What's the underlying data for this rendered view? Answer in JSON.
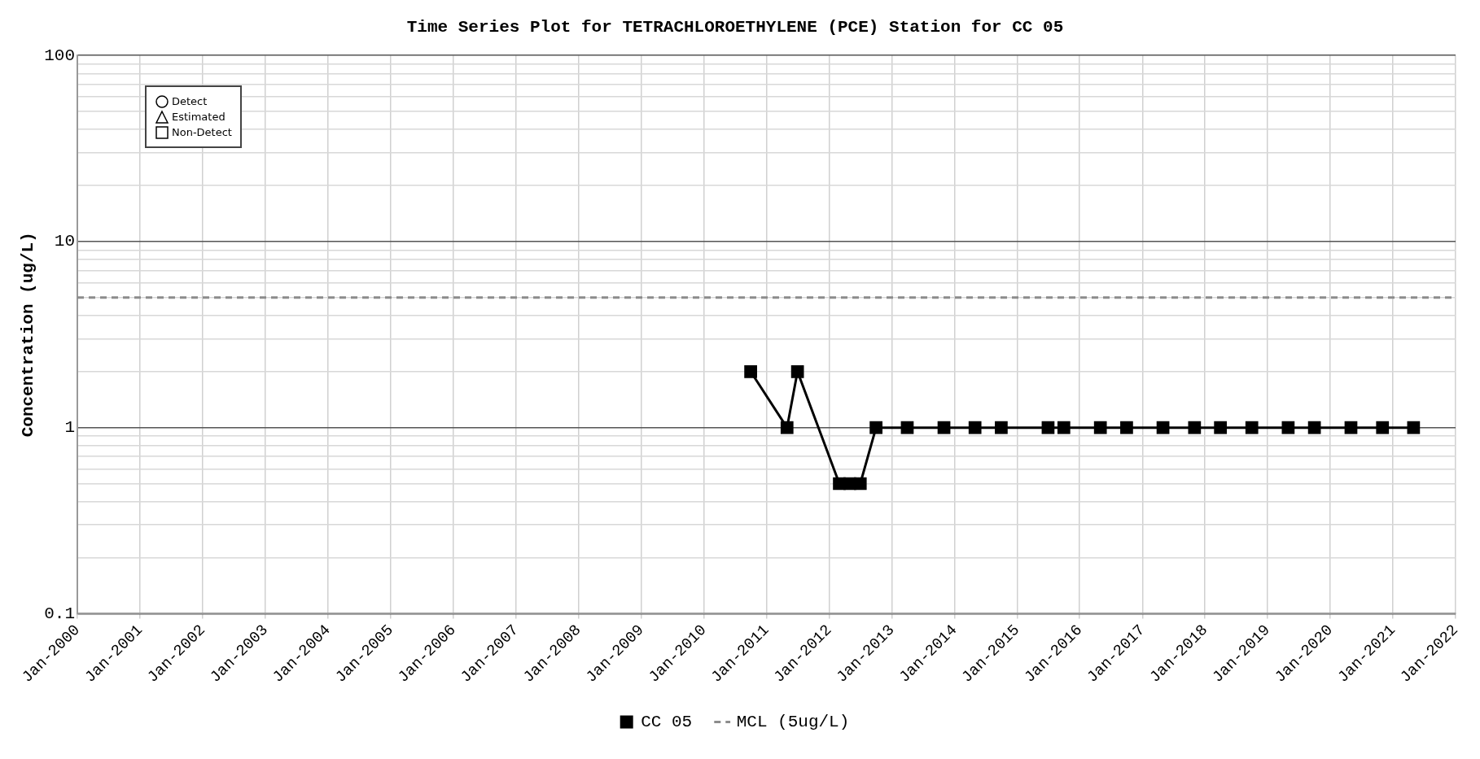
{
  "chart_data": {
    "type": "line",
    "title": "Time Series Plot for TETRACHLOROETHYLENE (PCE) Station for CC 05",
    "ylabel": "Concentration (ug/L)",
    "x": [
      "2010-10",
      "2011-05",
      "2011-07",
      "2012-03",
      "2012-05",
      "2012-07",
      "2012-10",
      "2013-04",
      "2013-11",
      "2014-05",
      "2014-10",
      "2015-07",
      "2015-10",
      "2016-05",
      "2016-10",
      "2017-05",
      "2017-11",
      "2018-04",
      "2018-10",
      "2019-05",
      "2019-10",
      "2020-05",
      "2020-11",
      "2021-05"
    ],
    "series": [
      {
        "name": "CC 05",
        "color": "#000000",
        "marker": "square",
        "values": [
          2,
          1,
          2,
          0.5,
          0.5,
          0.5,
          1,
          1,
          1,
          1,
          1,
          1,
          1,
          1,
          1,
          1,
          1,
          1,
          1,
          1,
          1,
          1,
          1,
          1
        ]
      }
    ],
    "log": "y",
    "ylim": [
      0.1,
      100
    ],
    "yticks": [
      0.1,
      1,
      10,
      100
    ],
    "xlim": [
      "2000-01",
      "2022-01"
    ],
    "xticks": [
      {
        "value": "2000-01",
        "label": "Jan-2000"
      },
      {
        "value": "2001-01",
        "label": "Jan-2001"
      },
      {
        "value": "2002-01",
        "label": "Jan-2002"
      },
      {
        "value": "2003-01",
        "label": "Jan-2003"
      },
      {
        "value": "2004-01",
        "label": "Jan-2004"
      },
      {
        "value": "2005-01",
        "label": "Jan-2005"
      },
      {
        "value": "2006-01",
        "label": "Jan-2006"
      },
      {
        "value": "2007-01",
        "label": "Jan-2007"
      },
      {
        "value": "2008-01",
        "label": "Jan-2008"
      },
      {
        "value": "2009-01",
        "label": "Jan-2009"
      },
      {
        "value": "2010-01",
        "label": "Jan-2010"
      },
      {
        "value": "2011-01",
        "label": "Jan-2011"
      },
      {
        "value": "2012-01",
        "label": "Jan-2012"
      },
      {
        "value": "2013-01",
        "label": "Jan-2013"
      },
      {
        "value": "2014-01",
        "label": "Jan-2014"
      },
      {
        "value": "2015-01",
        "label": "Jan-2015"
      },
      {
        "value": "2016-01",
        "label": "Jan-2016"
      },
      {
        "value": "2017-01",
        "label": "Jan-2017"
      },
      {
        "value": "2018-01",
        "label": "Jan-2018"
      },
      {
        "value": "2019-01",
        "label": "Jan-2019"
      },
      {
        "value": "2020-01",
        "label": "Jan-2020"
      },
      {
        "value": "2021-01",
        "label": "Jan-2021"
      },
      {
        "value": "2022-01",
        "label": "Jan-2022"
      }
    ],
    "ref_lines": [
      {
        "axis": "y",
        "value": 5,
        "label": "MCL (5ug/L)",
        "color": "#8c8c8c",
        "line_style": "dashed"
      }
    ],
    "annotations": [
      "Detect",
      "Estimated",
      "Non-Detect"
    ],
    "grid": true,
    "legend": "bottom",
    "line_style": "solid"
  }
}
